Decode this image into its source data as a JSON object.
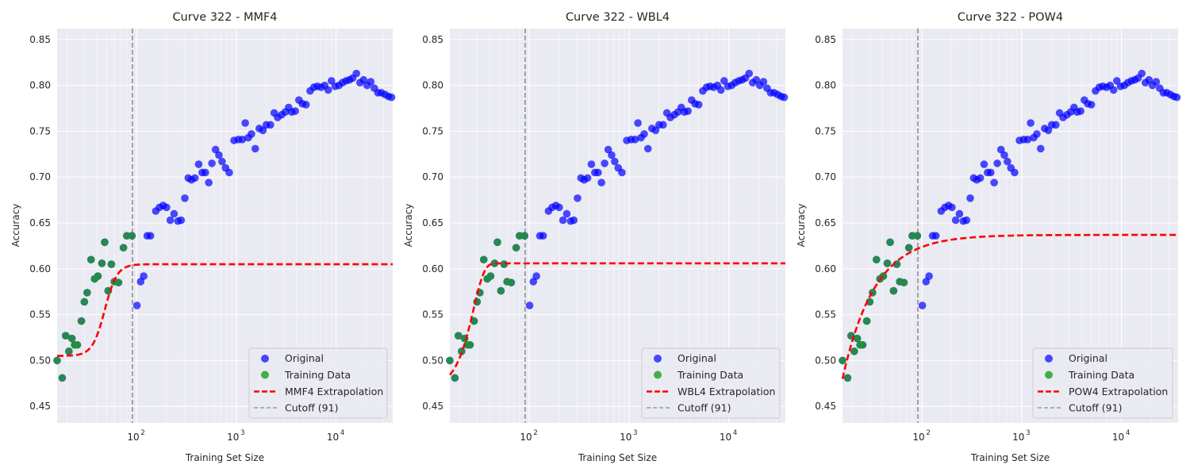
{
  "chart_data": [
    {
      "type": "scatter",
      "title": "Curve 322 - MMF4",
      "xlabel": "Training Set Size",
      "ylabel": "Accuracy",
      "xscale": "log",
      "xlim": [
        16,
        37000
      ],
      "ylim": [
        0.432,
        0.862
      ],
      "xticks": [
        {
          "value": 100,
          "base": "10",
          "exp": "2"
        },
        {
          "value": 1000,
          "base": "10",
          "exp": "3"
        },
        {
          "value": 10000,
          "base": "10",
          "exp": "4"
        }
      ],
      "yticks": [
        "0.45",
        "0.50",
        "0.55",
        "0.60",
        "0.65",
        "0.70",
        "0.75",
        "0.80",
        "0.85"
      ],
      "grid": true,
      "legend_position": "lower-right",
      "cutoff": 91,
      "model": "MMF4",
      "extrapolation": {
        "params": {
          "y0": 0.505,
          "yinf": 0.605,
          "k": 1.7e-12,
          "d": 7.0
        }
      },
      "legend": [
        "Original",
        "Training Data",
        "MMF4 Extrapolation",
        "Cutoff (91)"
      ]
    },
    {
      "type": "scatter",
      "title": "Curve 322 - WBL4",
      "xlabel": "Training Set Size",
      "ylabel": "Accuracy",
      "xscale": "log",
      "xlim": [
        16,
        37000
      ],
      "ylim": [
        0.432,
        0.862
      ],
      "xticks": [
        {
          "value": 100,
          "base": "10",
          "exp": "2"
        },
        {
          "value": 1000,
          "base": "10",
          "exp": "3"
        },
        {
          "value": 10000,
          "base": "10",
          "exp": "4"
        }
      ],
      "yticks": [
        "0.45",
        "0.50",
        "0.55",
        "0.60",
        "0.65",
        "0.70",
        "0.75",
        "0.80",
        "0.85"
      ],
      "grid": true,
      "legend_position": "lower-right",
      "cutoff": 91,
      "model": "WBL4",
      "extrapolation": {
        "params": {
          "y0": 0.47,
          "yinf": 0.606,
          "k": 1.7e-06,
          "d": 4.0
        }
      },
      "legend": [
        "Original",
        "Training Data",
        "WBL4 Extrapolation",
        "Cutoff (91)"
      ]
    },
    {
      "type": "scatter",
      "title": "Curve 322 - POW4",
      "xlabel": "Training Set Size",
      "ylabel": "Accuracy",
      "xscale": "log",
      "xlim": [
        16,
        37000
      ],
      "ylim": [
        0.432,
        0.862
      ],
      "xticks": [
        {
          "value": 100,
          "base": "10",
          "exp": "2"
        },
        {
          "value": 1000,
          "base": "10",
          "exp": "3"
        },
        {
          "value": 10000,
          "base": "10",
          "exp": "4"
        }
      ],
      "yticks": [
        "0.45",
        "0.50",
        "0.55",
        "0.60",
        "0.65",
        "0.70",
        "0.75",
        "0.80",
        "0.85"
      ],
      "grid": true,
      "legend_position": "lower-right",
      "cutoff": 91,
      "model": "POW4",
      "extrapolation": {
        "params": {
          "a": 0.637,
          "b": 5.6,
          "c": 1.0,
          "alpha": 2.2
        }
      },
      "legend": [
        "Original",
        "Training Data",
        "POW4 Extrapolation",
        "Cutoff (91)"
      ]
    }
  ],
  "series_data": {
    "original": {
      "name": "Original",
      "color": "#0000ff",
      "points": [
        [
          16,
          0.5
        ],
        [
          18,
          0.481
        ],
        [
          19.5,
          0.527
        ],
        [
          21,
          0.51
        ],
        [
          22.5,
          0.524
        ],
        [
          24,
          0.517
        ],
        [
          25.5,
          0.517
        ],
        [
          28,
          0.543
        ],
        [
          30,
          0.564
        ],
        [
          32,
          0.574
        ],
        [
          35,
          0.61
        ],
        [
          38,
          0.589
        ],
        [
          41,
          0.592
        ],
        [
          45,
          0.606
        ],
        [
          48,
          0.629
        ],
        [
          52,
          0.576
        ],
        [
          56,
          0.605
        ],
        [
          60,
          0.586
        ],
        [
          66,
          0.585
        ],
        [
          74,
          0.623
        ],
        [
          80,
          0.636
        ],
        [
          90,
          0.636
        ],
        [
          101,
          0.56
        ],
        [
          110,
          0.586
        ],
        [
          118,
          0.592
        ],
        [
          128,
          0.636
        ],
        [
          138,
          0.636
        ],
        [
          156,
          0.663
        ],
        [
          170,
          0.667
        ],
        [
          185,
          0.669
        ],
        [
          200,
          0.667
        ],
        [
          218,
          0.653
        ],
        [
          238,
          0.66
        ],
        [
          260,
          0.652
        ],
        [
          280,
          0.653
        ],
        [
          305,
          0.677
        ],
        [
          330,
          0.699
        ],
        [
          355,
          0.697
        ],
        [
          385,
          0.699
        ],
        [
          420,
          0.714
        ],
        [
          455,
          0.705
        ],
        [
          490,
          0.705
        ],
        [
          530,
          0.694
        ],
        [
          570,
          0.715
        ],
        [
          620,
          0.73
        ],
        [
          670,
          0.724
        ],
        [
          720,
          0.717
        ],
        [
          780,
          0.71
        ],
        [
          850,
          0.705
        ],
        [
          950,
          0.74
        ],
        [
          1050,
          0.741
        ],
        [
          1150,
          0.741
        ],
        [
          1230,
          0.759
        ],
        [
          1320,
          0.743
        ],
        [
          1420,
          0.747
        ],
        [
          1550,
          0.731
        ],
        [
          1700,
          0.753
        ],
        [
          1850,
          0.751
        ],
        [
          2000,
          0.757
        ],
        [
          2200,
          0.757
        ],
        [
          2400,
          0.77
        ],
        [
          2600,
          0.765
        ],
        [
          2850,
          0.768
        ],
        [
          3100,
          0.771
        ],
        [
          3350,
          0.776
        ],
        [
          3600,
          0.771
        ],
        [
          3900,
          0.772
        ],
        [
          4250,
          0.784
        ],
        [
          4600,
          0.78
        ],
        [
          5000,
          0.779
        ],
        [
          5500,
          0.794
        ],
        [
          6000,
          0.798
        ],
        [
          6500,
          0.799
        ],
        [
          7100,
          0.798
        ],
        [
          7700,
          0.8
        ],
        [
          8350,
          0.795
        ],
        [
          9000,
          0.805
        ],
        [
          9800,
          0.799
        ],
        [
          10700,
          0.8
        ],
        [
          11600,
          0.803
        ],
        [
          12600,
          0.805
        ],
        [
          13600,
          0.806
        ],
        [
          14700,
          0.808
        ],
        [
          16000,
          0.813
        ],
        [
          17400,
          0.803
        ],
        [
          18900,
          0.806
        ],
        [
          20500,
          0.8
        ],
        [
          22300,
          0.804
        ],
        [
          24200,
          0.797
        ],
        [
          26300,
          0.792
        ],
        [
          28500,
          0.792
        ],
        [
          31000,
          0.79
        ],
        [
          33500,
          0.788
        ],
        [
          36000,
          0.787
        ]
      ]
    },
    "training": {
      "name": "Training Data",
      "color": "#1e9e1e",
      "points": [
        [
          16,
          0.5
        ],
        [
          18,
          0.481
        ],
        [
          19.5,
          0.527
        ],
        [
          21,
          0.51
        ],
        [
          22.5,
          0.524
        ],
        [
          24,
          0.517
        ],
        [
          25.5,
          0.517
        ],
        [
          28,
          0.543
        ],
        [
          30,
          0.564
        ],
        [
          32,
          0.574
        ],
        [
          35,
          0.61
        ],
        [
          38,
          0.589
        ],
        [
          41,
          0.592
        ],
        [
          45,
          0.606
        ],
        [
          48,
          0.629
        ],
        [
          52,
          0.576
        ],
        [
          56,
          0.605
        ],
        [
          60,
          0.586
        ],
        [
          66,
          0.585
        ],
        [
          74,
          0.623
        ],
        [
          80,
          0.636
        ],
        [
          90,
          0.636
        ]
      ]
    },
    "extrapolation_color": "#ff0000",
    "cutoff_color": "#999999"
  }
}
